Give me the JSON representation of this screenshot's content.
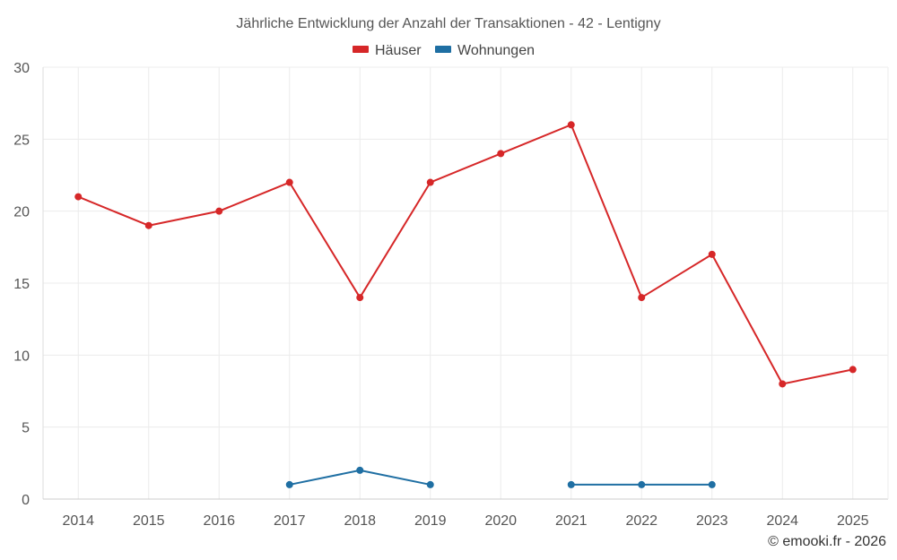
{
  "chart_data": {
    "type": "line",
    "title": "Jährliche Entwicklung der Anzahl der Transaktionen - 42 - Lentigny",
    "categories": [
      "2014",
      "2015",
      "2016",
      "2017",
      "2018",
      "2019",
      "2020",
      "2021",
      "2022",
      "2023",
      "2024",
      "2025"
    ],
    "ylim": [
      0,
      30
    ],
    "yticks": [
      0,
      5,
      10,
      15,
      20,
      25,
      30
    ],
    "grid": true,
    "legend_position": "top-center",
    "series": [
      {
        "name": "Häuser",
        "color": "#d62728",
        "values": [
          21,
          19,
          20,
          22,
          14,
          22,
          24,
          26,
          14,
          17,
          8,
          9
        ]
      },
      {
        "name": "Wohnungen",
        "color": "#1f6fa3",
        "values": [
          null,
          null,
          null,
          1,
          2,
          1,
          null,
          1,
          1,
          1,
          null,
          null
        ]
      }
    ],
    "xlabel": "",
    "ylabel": ""
  },
  "credit": "© emooki.fr - 2026"
}
